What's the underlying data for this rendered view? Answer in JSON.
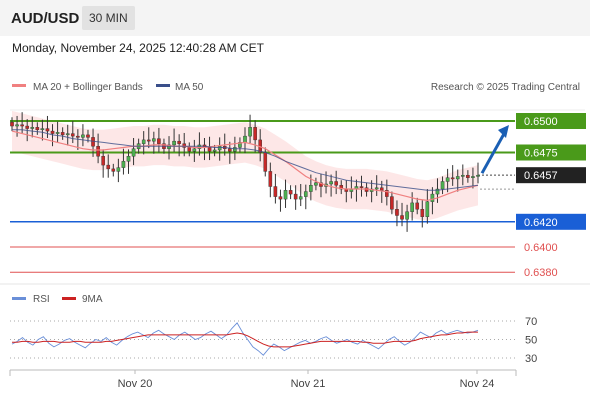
{
  "header": {
    "pair": "AUD/USD",
    "timeframe": "30 MIN"
  },
  "datetime": "Monday, November 24, 2025 12:40:28 AM CET",
  "legend": {
    "ma20_label": "MA 20 + Bollinger Bands",
    "ma50_label": "MA 50",
    "credit": "Research © 2025 Trading Central",
    "rsi_label": "RSI",
    "ma9_label": "9MA"
  },
  "colors": {
    "candle_up": "#4caf50",
    "candle_down": "#c62828",
    "ma20": "#f08080",
    "band_fill": "#fde3e3",
    "ma50": "#3a4f8a",
    "resistance": "#4a9a1a",
    "pivot": "#1a5fd6",
    "support": "#e05050",
    "rsi": "#6a8fd8",
    "ma9": "#cc2222",
    "arrow": "#1a5fb4"
  },
  "chart_data": [
    {
      "type": "candlestick",
      "title": "AUD/USD 30 MIN",
      "x_ticks": [
        "Nov 20",
        "Nov 21",
        "Nov 24"
      ],
      "ylim": [
        0.637,
        0.652
      ],
      "last_price": "0.6457",
      "levels": [
        {
          "value": 0.65,
          "label": "0.6500",
          "kind": "resistance"
        },
        {
          "value": 0.6475,
          "label": "0.6475",
          "kind": "resistance"
        },
        {
          "value": 0.642,
          "label": "0.6420",
          "kind": "pivot"
        },
        {
          "value": 0.64,
          "label": "0.6400",
          "kind": "support"
        },
        {
          "value": 0.638,
          "label": "0.6380",
          "kind": "support"
        }
      ],
      "forecast_arrow": {
        "from": 0.6457,
        "to": 0.65
      },
      "close_series": [
        0.6496,
        0.6497,
        0.6496,
        0.6494,
        0.6495,
        0.6493,
        0.6494,
        0.6492,
        0.649,
        0.6491,
        0.6489,
        0.649,
        0.6488,
        0.6487,
        0.6489,
        0.6487,
        0.648,
        0.6472,
        0.6465,
        0.6462,
        0.646,
        0.6463,
        0.6468,
        0.6472,
        0.6478,
        0.6482,
        0.6485,
        0.6484,
        0.6486,
        0.6482,
        0.6478,
        0.6481,
        0.6484,
        0.6482,
        0.6479,
        0.6476,
        0.6478,
        0.6481,
        0.6479,
        0.6476,
        0.6477,
        0.648,
        0.6478,
        0.6476,
        0.6479,
        0.6483,
        0.6488,
        0.6495,
        0.6485,
        0.6475,
        0.646,
        0.6448,
        0.644,
        0.6438,
        0.6445,
        0.6442,
        0.6438,
        0.644,
        0.6444,
        0.6449,
        0.6451,
        0.6448,
        0.645,
        0.6452,
        0.6449,
        0.6446,
        0.6444,
        0.6446,
        0.6448,
        0.6447,
        0.6444,
        0.6446,
        0.6447,
        0.6445,
        0.644,
        0.643,
        0.6425,
        0.6422,
        0.6428,
        0.6435,
        0.643,
        0.6424,
        0.6436,
        0.6442,
        0.6446,
        0.6452,
        0.6455,
        0.6454,
        0.6456,
        0.6457,
        0.6455,
        0.6456,
        0.6457
      ],
      "ma20_series": [
        0.6492,
        0.649,
        0.6488,
        0.6486,
        0.6484,
        0.6482,
        0.648,
        0.6478,
        0.6477,
        0.6477,
        0.6478,
        0.6479,
        0.648,
        0.648,
        0.6481,
        0.6481,
        0.648,
        0.648,
        0.6479,
        0.6479,
        0.648,
        0.6481,
        0.6482,
        0.6483,
        0.6481,
        0.6478,
        0.6473,
        0.6468,
        0.6462,
        0.6456,
        0.6452,
        0.6449,
        0.6447,
        0.6446,
        0.6446,
        0.6446,
        0.6445,
        0.6444,
        0.6442,
        0.644,
        0.6438,
        0.6437,
        0.6439,
        0.6442,
        0.6445,
        0.6447,
        0.6449
      ],
      "ma50_series": [
        0.6493,
        0.6493,
        0.6492,
        0.6491,
        0.6489,
        0.6488,
        0.6486,
        0.6485,
        0.6484,
        0.6483,
        0.6482,
        0.6481,
        0.648,
        0.648,
        0.648,
        0.648,
        0.648,
        0.648,
        0.648,
        0.648,
        0.6479,
        0.6479,
        0.6478,
        0.6478,
        0.6477,
        0.6475,
        0.6472,
        0.6468,
        0.6465,
        0.6462,
        0.6459,
        0.6457,
        0.6455,
        0.6453,
        0.6452,
        0.6451,
        0.645,
        0.6449,
        0.6448,
        0.6447,
        0.6446,
        0.6445,
        0.6445,
        0.6446,
        0.6447,
        0.6448,
        0.6449
      ]
    },
    {
      "type": "line",
      "ylim": [
        20,
        80
      ],
      "y_ticks": [
        70,
        50,
        30
      ],
      "series": [
        {
          "name": "RSI",
          "values": [
            45,
            48,
            52,
            47,
            44,
            50,
            53,
            46,
            42,
            45,
            49,
            51,
            47,
            44,
            41,
            46,
            50,
            48,
            52,
            47,
            44,
            49,
            53,
            56,
            58,
            55,
            52,
            57,
            60,
            56,
            53,
            50,
            55,
            58,
            54,
            50,
            52,
            56,
            59,
            55,
            51,
            55,
            62,
            68,
            58,
            50,
            42,
            38,
            33,
            40,
            45,
            42,
            38,
            41,
            44,
            47,
            49,
            46,
            48,
            51,
            53,
            49,
            46,
            48,
            50,
            47,
            45,
            49,
            46,
            43,
            40,
            45,
            50,
            53,
            48,
            44,
            47,
            52,
            58,
            55,
            52,
            57,
            60,
            56,
            58,
            60,
            58,
            57,
            58,
            60
          ]
        },
        {
          "name": "9MA",
          "values": [
            47,
            47,
            48,
            48,
            47,
            47,
            48,
            48,
            48,
            47,
            47,
            47,
            48,
            48,
            47,
            47,
            47,
            47,
            48,
            48,
            49,
            50,
            51,
            52,
            53,
            54,
            55,
            55,
            55,
            55,
            55,
            55,
            55,
            55,
            55,
            55,
            55,
            55,
            55,
            55,
            55,
            55,
            56,
            57,
            56,
            54,
            51,
            48,
            45,
            43,
            42,
            42,
            42,
            42,
            43,
            44,
            45,
            46,
            47,
            48,
            48,
            48,
            48,
            48,
            48,
            48,
            48,
            47,
            47,
            46,
            46,
            46,
            47,
            48,
            48,
            48,
            48,
            49,
            51,
            52,
            53,
            54,
            55,
            55,
            56,
            57,
            57,
            58,
            58,
            58
          ]
        }
      ]
    }
  ]
}
